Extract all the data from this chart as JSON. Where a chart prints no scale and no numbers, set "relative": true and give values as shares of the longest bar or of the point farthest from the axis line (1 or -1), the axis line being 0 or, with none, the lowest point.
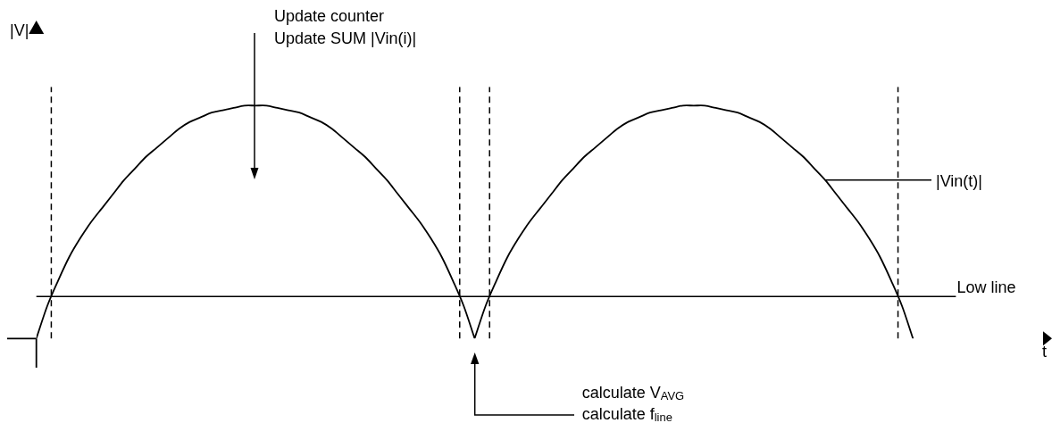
{
  "chart_data": {
    "type": "line",
    "relative": true,
    "ylabel": "|V|",
    "categories": [
      null,
      null,
      null,
      null,
      null,
      null,
      null,
      null,
      null,
      null,
      null,
      null,
      null,
      null,
      null,
      null,
      null,
      null,
      null,
      null,
      null,
      null,
      null,
      null,
      null,
      null,
      null,
      null,
      null,
      null,
      null,
      null,
      null,
      null,
      null,
      null,
      null,
      null,
      null,
      null,
      null,
      null,
      null,
      null,
      null,
      null,
      null,
      null,
      null,
      null,
      null,
      null,
      null,
      null,
      null,
      null,
      null,
      null,
      null,
      null,
      null,
      null,
      null,
      null,
      null,
      null,
      null,
      null,
      null,
      null,
      null,
      null,
      null,
      null,
      null,
      null,
      null,
      null,
      null,
      null,
      null
    ],
    "series": [
      {
        "name": "|Vin(t)|",
        "color": "#000000",
        "values": [
          0,
          0.14,
          0.25,
          0.35,
          0.43,
          0.5,
          0.56,
          0.62,
          0.68,
          0.73,
          0.78,
          0.82,
          0.86,
          0.9,
          0.93,
          0.95,
          0.97,
          0.98,
          0.99,
          1,
          1,
          1,
          0.99,
          0.98,
          0.97,
          0.95,
          0.93,
          0.9,
          0.86,
          0.82,
          0.78,
          0.73,
          0.68,
          0.62,
          0.56,
          0.5,
          0.43,
          0.35,
          0.25,
          0.14,
          0,
          0.14,
          0.25,
          0.35,
          0.43,
          0.5,
          0.56,
          0.62,
          0.68,
          0.73,
          0.78,
          0.82,
          0.86,
          0.9,
          0.93,
          0.95,
          0.97,
          0.98,
          0.99,
          1,
          1,
          1,
          0.99,
          0.98,
          0.97,
          0.95,
          0.93,
          0.9,
          0.86,
          0.82,
          0.78,
          0.73,
          0.68,
          0.62,
          0.56,
          0.5,
          0.43,
          0.35,
          0.25,
          0.14,
          0
        ]
      }
    ],
    "ref_lines": [
      {
        "axis": "y",
        "value": 0.18,
        "label": "Low line",
        "color": "#000000"
      }
    ],
    "annotations": [
      "Update counter",
      "Update SUM |Vin(i)|",
      "calculate V$_{AVG}$",
      "calculate f$_{line}$",
      "t"
    ]
  }
}
